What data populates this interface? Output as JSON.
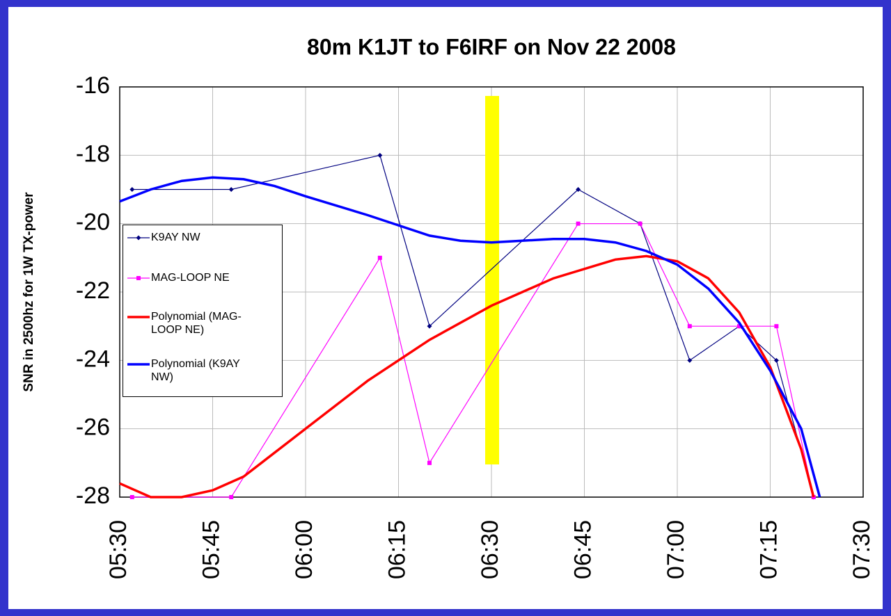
{
  "chart_data": {
    "type": "line",
    "title": "80m K1JT to F6IRF on Nov 22 2008",
    "y_label": "SNR in 2500hz for 1W TX-power",
    "xlim": [
      "05:30",
      "07:30"
    ],
    "xticks": [
      "05:30",
      "05:45",
      "06:00",
      "06:15",
      "06:30",
      "06:45",
      "07:00",
      "07:15",
      "07:30"
    ],
    "ylim": [
      -28,
      -16
    ],
    "yticks": [
      -28,
      -26,
      -24,
      -22,
      -20,
      -18,
      -16
    ],
    "grid": true,
    "series": [
      {
        "name": "K9AY NW",
        "color": "#000080",
        "marker": true,
        "x": [
          "05:32",
          "05:48",
          "06:12",
          "06:20",
          "06:44",
          "06:54",
          "07:02",
          "07:10",
          "07:16",
          "07:22"
        ],
        "values": [
          -19,
          -19,
          -18,
          -23,
          -19,
          -20,
          -24,
          -23,
          -24,
          -28
        ]
      },
      {
        "name": "MAG-LOOP NE",
        "color": "#ff00ff",
        "marker": true,
        "x": [
          "05:32",
          "05:48",
          "06:12",
          "06:20",
          "06:44",
          "06:54",
          "07:02",
          "07:10",
          "07:16",
          "07:22"
        ],
        "values": [
          -28,
          -28,
          -21,
          -27,
          -20,
          -20,
          -23,
          -23,
          -23,
          -28
        ]
      },
      {
        "name": "Polynomial (MAG-LOOP NE)",
        "color": "#ff0000",
        "marker": false,
        "x": [
          "05:30",
          "05:35",
          "05:40",
          "05:45",
          "05:50",
          "06:00",
          "06:10",
          "06:20",
          "06:30",
          "06:40",
          "06:50",
          "06:55",
          "07:00",
          "07:05",
          "07:10",
          "07:15",
          "07:20",
          "07:22"
        ],
        "values": [
          -27.6,
          -28,
          -28,
          -27.8,
          -27.4,
          -26.0,
          -24.6,
          -23.4,
          -22.4,
          -21.6,
          -21.05,
          -20.95,
          -21.1,
          -21.6,
          -22.6,
          -24.2,
          -26.6,
          -28
        ]
      },
      {
        "name": "Polynomial (K9AY NW)",
        "color": "#0000ff",
        "marker": false,
        "x": [
          "05:30",
          "05:35",
          "05:40",
          "05:45",
          "05:50",
          "05:55",
          "06:00",
          "06:10",
          "06:15",
          "06:20",
          "06:25",
          "06:30",
          "06:40",
          "06:45",
          "06:50",
          "06:55",
          "07:00",
          "07:05",
          "07:10",
          "07:15",
          "07:20",
          "07:23"
        ],
        "values": [
          -19.35,
          -19.0,
          -18.75,
          -18.65,
          -18.7,
          -18.9,
          -19.2,
          -19.75,
          -20.05,
          -20.35,
          -20.5,
          -20.55,
          -20.45,
          -20.45,
          -20.55,
          -20.8,
          -21.2,
          -21.9,
          -22.9,
          -24.3,
          -26.0,
          -28
        ]
      }
    ]
  }
}
